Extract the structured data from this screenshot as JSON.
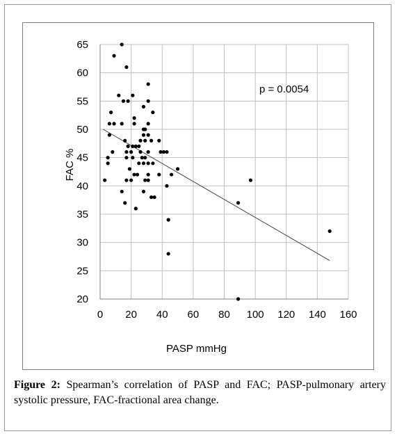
{
  "chart_data": {
    "type": "scatter",
    "xlabel": "PASP mmHg",
    "ylabel": "FAC %",
    "xlim": [
      0,
      160
    ],
    "ylim": [
      20,
      65
    ],
    "x_ticks": [
      "0",
      "20",
      "40",
      "60",
      "80",
      "100",
      "120",
      "140",
      "160"
    ],
    "y_ticks": [
      "65",
      "60",
      "55",
      "50",
      "45",
      "40",
      "35",
      "30",
      "25",
      "20"
    ],
    "grid": true,
    "annotation": "p = 0.0054",
    "trendline": {
      "x": [
        2,
        148
      ],
      "y": [
        50.0,
        26.8
      ]
    },
    "points": [
      {
        "x": 14,
        "y": 65
      },
      {
        "x": 9,
        "y": 63
      },
      {
        "x": 17,
        "y": 61
      },
      {
        "x": 31,
        "y": 58
      },
      {
        "x": 21,
        "y": 56
      },
      {
        "x": 12,
        "y": 56
      },
      {
        "x": 15,
        "y": 55
      },
      {
        "x": 18,
        "y": 55
      },
      {
        "x": 31,
        "y": 55
      },
      {
        "x": 28,
        "y": 54
      },
      {
        "x": 7,
        "y": 53
      },
      {
        "x": 34,
        "y": 53
      },
      {
        "x": 22,
        "y": 52
      },
      {
        "x": 6,
        "y": 51
      },
      {
        "x": 9,
        "y": 51
      },
      {
        "x": 14,
        "y": 51
      },
      {
        "x": 22,
        "y": 51
      },
      {
        "x": 31,
        "y": 51
      },
      {
        "x": 28,
        "y": 50
      },
      {
        "x": 29,
        "y": 50
      },
      {
        "x": 6,
        "y": 49
      },
      {
        "x": 28,
        "y": 49
      },
      {
        "x": 31,
        "y": 49
      },
      {
        "x": 16,
        "y": 48
      },
      {
        "x": 26,
        "y": 48
      },
      {
        "x": 29,
        "y": 48
      },
      {
        "x": 33,
        "y": 48
      },
      {
        "x": 38,
        "y": 48
      },
      {
        "x": 18,
        "y": 47
      },
      {
        "x": 21,
        "y": 47
      },
      {
        "x": 23,
        "y": 47
      },
      {
        "x": 25,
        "y": 47
      },
      {
        "x": 8,
        "y": 46
      },
      {
        "x": 17,
        "y": 46
      },
      {
        "x": 20,
        "y": 46
      },
      {
        "x": 26,
        "y": 46
      },
      {
        "x": 31,
        "y": 46
      },
      {
        "x": 39,
        "y": 46
      },
      {
        "x": 41,
        "y": 46
      },
      {
        "x": 43,
        "y": 46
      },
      {
        "x": 5,
        "y": 45
      },
      {
        "x": 17,
        "y": 45
      },
      {
        "x": 21,
        "y": 45
      },
      {
        "x": 27,
        "y": 45
      },
      {
        "x": 29,
        "y": 45
      },
      {
        "x": 5,
        "y": 44
      },
      {
        "x": 25,
        "y": 44
      },
      {
        "x": 28,
        "y": 44
      },
      {
        "x": 31,
        "y": 44
      },
      {
        "x": 34,
        "y": 44
      },
      {
        "x": 19,
        "y": 43
      },
      {
        "x": 50,
        "y": 43
      },
      {
        "x": 22,
        "y": 42
      },
      {
        "x": 24,
        "y": 42
      },
      {
        "x": 31,
        "y": 42
      },
      {
        "x": 38,
        "y": 42
      },
      {
        "x": 46,
        "y": 42
      },
      {
        "x": 3,
        "y": 41
      },
      {
        "x": 17,
        "y": 41
      },
      {
        "x": 20,
        "y": 41
      },
      {
        "x": 29,
        "y": 41
      },
      {
        "x": 31,
        "y": 41
      },
      {
        "x": 97,
        "y": 41
      },
      {
        "x": 43,
        "y": 40
      },
      {
        "x": 14,
        "y": 39
      },
      {
        "x": 28,
        "y": 39
      },
      {
        "x": 33,
        "y": 38
      },
      {
        "x": 35,
        "y": 38
      },
      {
        "x": 16,
        "y": 37
      },
      {
        "x": 89,
        "y": 37
      },
      {
        "x": 23,
        "y": 36
      },
      {
        "x": 44,
        "y": 34
      },
      {
        "x": 148,
        "y": 32
      },
      {
        "x": 44,
        "y": 28
      },
      {
        "x": 89,
        "y": 20
      }
    ]
  },
  "caption": {
    "label": "Figure 2:",
    "text": " Spearman’s correlation of PASP and FAC; PASP-pulmonary artery systolic pressure, FAC-fractional area change."
  },
  "colors": {
    "points": "#000000",
    "grid": "#c0c0c0",
    "axis": "#808080",
    "trendline": "#404040"
  }
}
